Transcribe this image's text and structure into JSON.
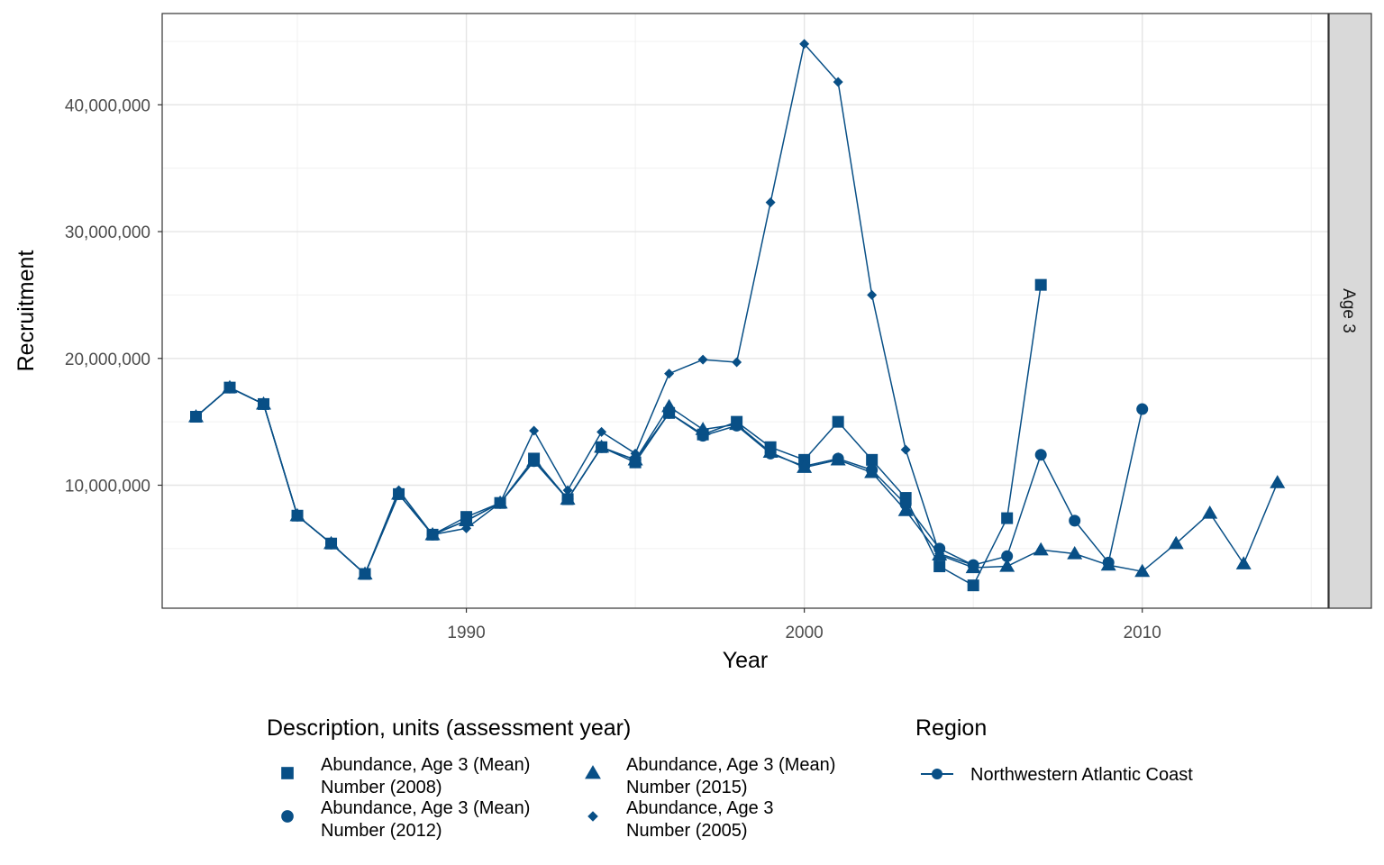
{
  "chart_data": {
    "type": "line",
    "xlabel": "Year",
    "ylabel": "Recruitment",
    "facet_label": "Age 3",
    "xlim": [
      1981,
      2015.5
    ],
    "ylim": [
      300000,
      47200000
    ],
    "x_ticks": [
      1990,
      2000,
      2010
    ],
    "y_ticks": [
      10000000,
      20000000,
      30000000,
      40000000
    ],
    "y_tick_labels": [
      "10,000,000",
      "20,000,000",
      "30,000,000",
      "40,000,000"
    ],
    "grid": true,
    "line_color": "#084F86",
    "legend_position": "bottom",
    "series": [
      {
        "name": "Abundance, Age 3 (Mean) Number (2008)",
        "shape": "square",
        "x": [
          1982,
          1983,
          1984,
          1985,
          1986,
          1987,
          1988,
          1989,
          1990,
          1991,
          1992,
          1993,
          1994,
          1995,
          1996,
          1997,
          1998,
          1999,
          2000,
          2001,
          2002,
          2003,
          2004,
          2005,
          2006,
          2007
        ],
        "y": [
          15400000,
          17700000,
          16400000,
          7600000,
          5400000,
          3000000,
          9300000,
          6100000,
          7500000,
          8600000,
          12100000,
          8900000,
          13000000,
          11800000,
          15700000,
          14000000,
          15000000,
          13000000,
          12000000,
          15000000,
          12000000,
          9000000,
          3600000,
          2100000,
          7400000,
          25800000
        ]
      },
      {
        "name": "Abundance, Age 3 (Mean) Number (2012)",
        "shape": "circle",
        "x": [
          1982,
          1983,
          1984,
          1985,
          1986,
          1987,
          1988,
          1989,
          1990,
          1991,
          1992,
          1993,
          1994,
          1995,
          1996,
          1997,
          1998,
          1999,
          2000,
          2001,
          2002,
          2003,
          2004,
          2005,
          2006,
          2007,
          2008,
          2009,
          2010
        ],
        "y": [
          15400000,
          17700000,
          16400000,
          7600000,
          5400000,
          3000000,
          9300000,
          6100000,
          7200000,
          8600000,
          11900000,
          8900000,
          13000000,
          12000000,
          15700000,
          13900000,
          14700000,
          12500000,
          11500000,
          12100000,
          11200000,
          8500000,
          5000000,
          3700000,
          4400000,
          12400000,
          7200000,
          3900000,
          16000000
        ]
      },
      {
        "name": "Abundance, Age 3 (Mean) Number (2015)",
        "shape": "triangle",
        "x": [
          1982,
          1983,
          1984,
          1985,
          1986,
          1987,
          1988,
          1989,
          1990,
          1991,
          1992,
          1993,
          1994,
          1995,
          1996,
          1997,
          1998,
          1999,
          2000,
          2001,
          2002,
          2003,
          2004,
          2005,
          2006,
          2007,
          2008,
          2009,
          2010,
          2011,
          2012,
          2013,
          2014
        ],
        "y": [
          15400000,
          17700000,
          16400000,
          7600000,
          5400000,
          3000000,
          9300000,
          6100000,
          7200000,
          8600000,
          11900000,
          8900000,
          13000000,
          12000000,
          16200000,
          14400000,
          14800000,
          12600000,
          11400000,
          12000000,
          11000000,
          8000000,
          4500000,
          3500000,
          3600000,
          4900000,
          4600000,
          3700000,
          3200000,
          5400000,
          7800000,
          3800000,
          10200000
        ]
      },
      {
        "name": "Abundance, Age 3 Number (2005)",
        "shape": "diamond",
        "x": [
          1982,
          1983,
          1984,
          1985,
          1986,
          1987,
          1988,
          1989,
          1990,
          1991,
          1992,
          1993,
          1994,
          1995,
          1996,
          1997,
          1998,
          1999,
          2000,
          2001,
          2002,
          2003,
          2004,
          2005
        ],
        "y": [
          15400000,
          17700000,
          16400000,
          7600000,
          5400000,
          3000000,
          9600000,
          6100000,
          6600000,
          8600000,
          14300000,
          9600000,
          14200000,
          12500000,
          18800000,
          19900000,
          19700000,
          32300000,
          44800000,
          41800000,
          25000000,
          12800000,
          4600000,
          3700000
        ]
      }
    ]
  },
  "legend": {
    "description_title": "Description, units (assessment year)",
    "items": [
      {
        "shape": "square",
        "line1": "Abundance, Age 3 (Mean)",
        "line2": "Number (2008)"
      },
      {
        "shape": "circle",
        "line1": "Abundance, Age 3 (Mean)",
        "line2": "Number (2012)"
      },
      {
        "shape": "triangle",
        "line1": "Abundance, Age 3 (Mean)",
        "line2": "Number (2015)"
      },
      {
        "shape": "diamond",
        "line1": "Abundance, Age 3",
        "line2": "Number (2005)"
      }
    ],
    "region_title": "Region",
    "region_label": "Northwestern Atlantic Coast"
  }
}
